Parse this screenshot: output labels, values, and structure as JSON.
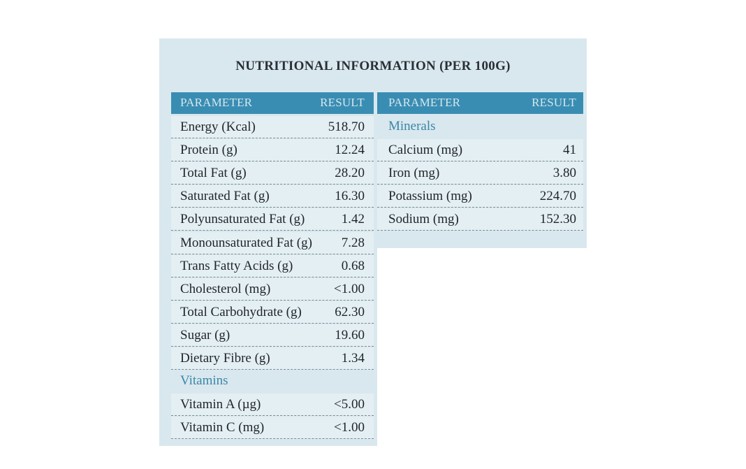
{
  "title": "NUTRITIONAL INFORMATION (PER 100G)",
  "left_table": {
    "headers": [
      "PARAMETER",
      "RESULT"
    ],
    "rows": [
      [
        "Energy (Kcal)",
        "518.70"
      ],
      [
        "Protein (g)",
        "12.24"
      ],
      [
        "Total Fat (g)",
        "28.20"
      ],
      [
        "Saturated Fat (g)",
        "16.30"
      ],
      [
        "Polyunsaturated Fat (g)",
        "1.42"
      ],
      [
        "Monounsaturated Fat (g)",
        "7.28"
      ],
      [
        "Trans Fatty Acids (g)",
        "0.68"
      ],
      [
        "Cholesterol (mg)",
        "<1.00"
      ],
      [
        "Total Carbohydrate (g)",
        "62.30"
      ],
      [
        "Sugar (g)",
        "19.60"
      ],
      [
        "Dietary Fibre (g)",
        "1.34"
      ],
      [
        "Vitamins"
      ],
      [
        "Vitamin A (µg)",
        "<5.00"
      ],
      [
        "Vitamin C (mg)",
        "<1.00"
      ]
    ]
  },
  "right_table": {
    "headers": [
      "PARAMETER",
      "RESULT"
    ],
    "rows": [
      [
        "Minerals"
      ],
      [
        "Calcium (mg)",
        "41"
      ],
      [
        "Iron (mg)",
        "3.80"
      ],
      [
        "Potassium (mg)",
        "224.70"
      ],
      [
        "Sodium (mg)",
        "152.30"
      ]
    ]
  }
}
